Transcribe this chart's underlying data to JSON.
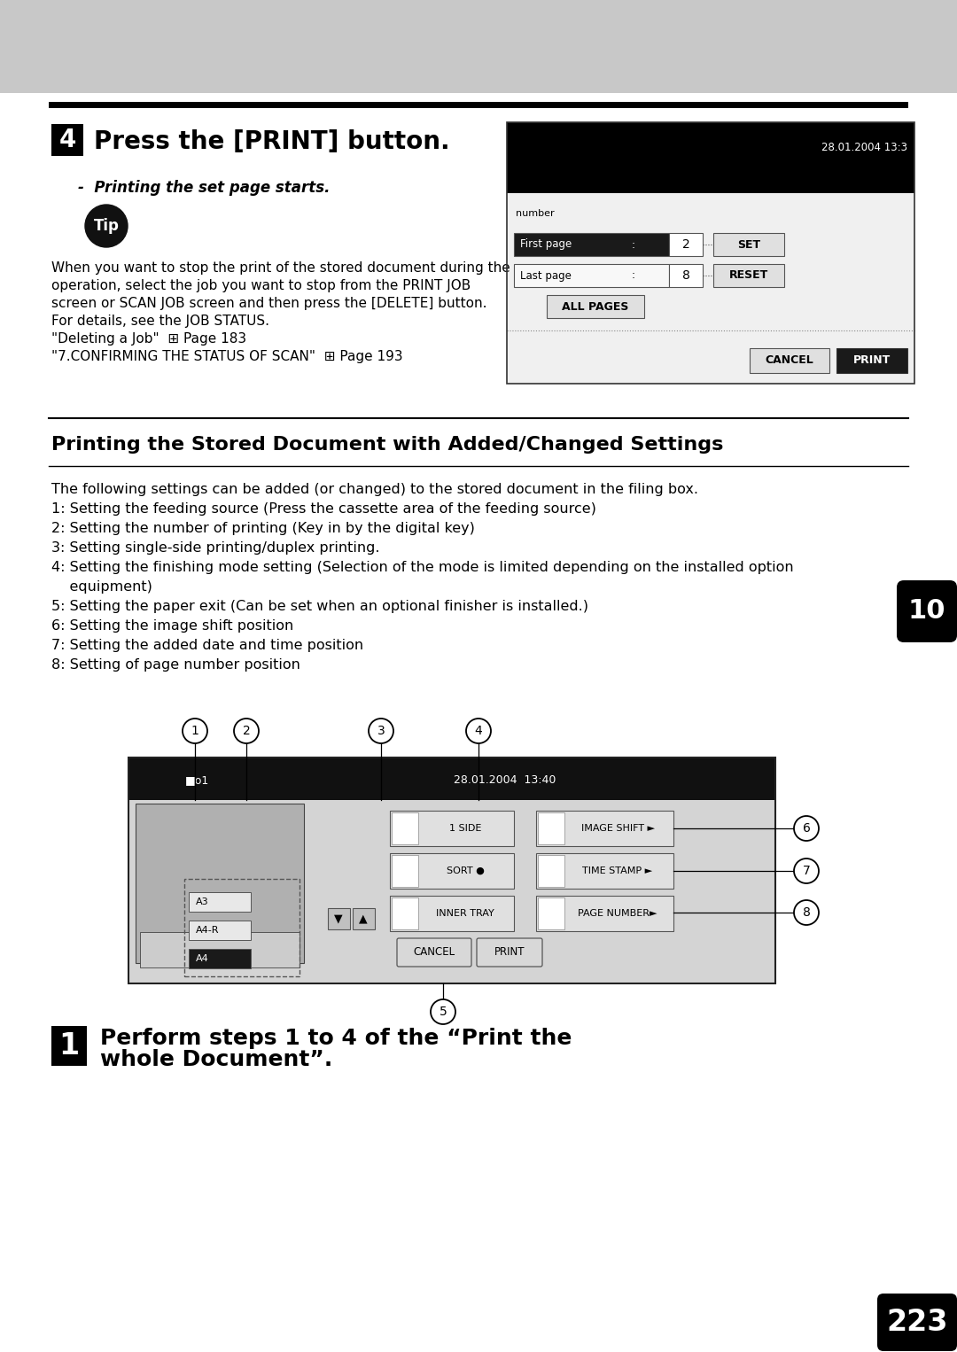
{
  "page_number": "223",
  "bg_color": "#ffffff",
  "section4_step_num": "4",
  "section4_title": "Press the [PRINT] button.",
  "section4_bullet": "Printing the set page starts.",
  "tip_body_lines": [
    "When you want to stop the print of the stored document during the",
    "operation, select the job you want to stop from the PRINT JOB",
    "screen or SCAN JOB screen and then press the [DELETE] button.",
    "For details, see the JOB STATUS.",
    "\"Deleting a Job\"  ⊞ Page 183",
    "\"7.CONFIRMING THE STATUS OF SCAN\"  ⊞ Page 193"
  ],
  "section_title": "Printing the Stored Document with Added/Changed Settings",
  "section_body_lines": [
    "The following settings can be added (or changed) to the stored document in the filing box.",
    "1: Setting the feeding source (Press the cassette area of the feeding source)",
    "2: Setting the number of printing (Key in by the digital key)",
    "3: Setting single-side printing/duplex printing.",
    "4: Setting the finishing mode setting (Selection of the mode is limited depending on the installed option",
    "    equipment)",
    "5: Setting the paper exit (Can be set when an optional finisher is installed.)",
    "6: Setting the image shift position",
    "7: Setting the added date and time position",
    "8: Setting of page number position"
  ],
  "step1_num": "1",
  "step1_line1": "Perform steps 1 to 4 of the “Print the",
  "step1_line2": "whole Document”.",
  "right_tab_text": "10",
  "page_num_text": "223"
}
